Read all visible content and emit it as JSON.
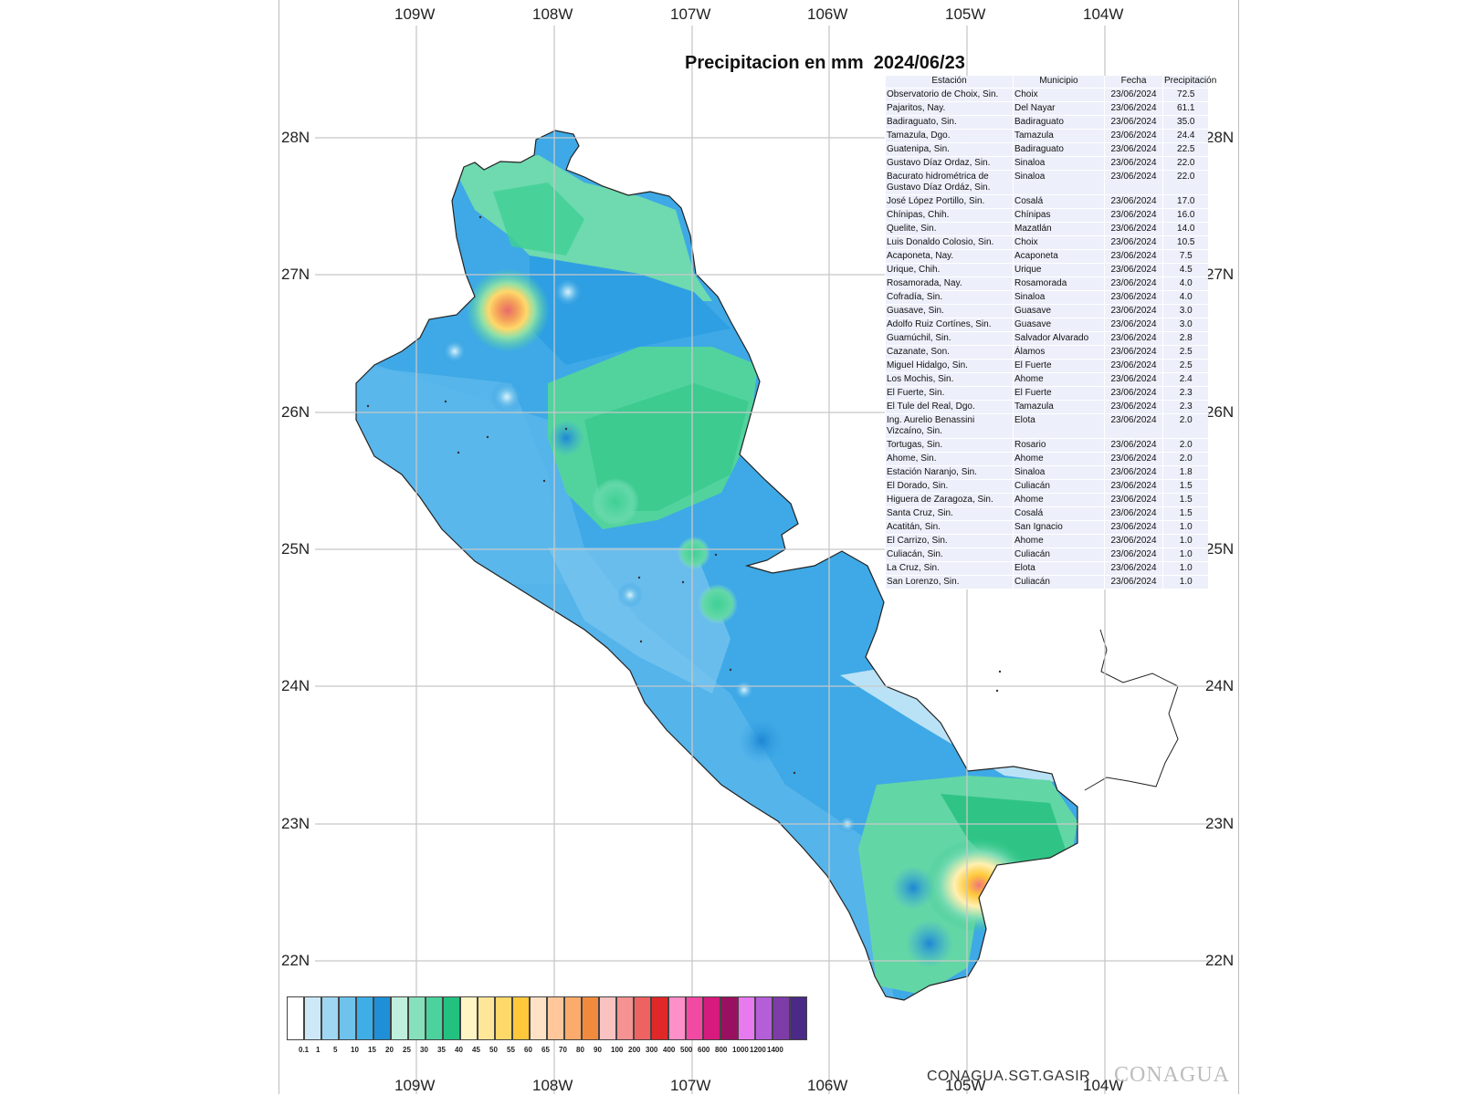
{
  "title": "Precipitacion en mm  2024/06/23",
  "lon_labels": [
    "109W",
    "108W",
    "107W",
    "106W",
    "105W",
    "104W"
  ],
  "lat_labels": [
    "28N",
    "27N",
    "26N",
    "25N",
    "24N",
    "23N",
    "22N"
  ],
  "table": {
    "headers": [
      "Estación",
      "Municipio",
      "Fecha",
      "Precipitación"
    ],
    "rows": [
      [
        "Observatorio de Choix, Sin.",
        "Choix",
        "23/06/2024",
        "72.5"
      ],
      [
        "Pajaritos, Nay.",
        "Del Nayar",
        "23/06/2024",
        "61.1"
      ],
      [
        "Badiraguato, Sin.",
        "Badiraguato",
        "23/06/2024",
        "35.0"
      ],
      [
        "Tamazula, Dgo.",
        "Tamazula",
        "23/06/2024",
        "24.4"
      ],
      [
        "Guatenipa, Sin.",
        "Badiraguato",
        "23/06/2024",
        "22.5"
      ],
      [
        "Gustavo Díaz Ordaz, Sin.",
        "Sinaloa",
        "23/06/2024",
        "22.0"
      ],
      [
        "Bacurato hidrométrica de Gustavo Díaz Ordáz, Sin.",
        "Sinaloa",
        "23/06/2024",
        "22.0"
      ],
      [
        "José López Portillo, Sin.",
        "Cosalá",
        "23/06/2024",
        "17.0"
      ],
      [
        "Chínipas, Chih.",
        "Chínipas",
        "23/06/2024",
        "16.0"
      ],
      [
        "Quelite, Sin.",
        "Mazatlán",
        "23/06/2024",
        "14.0"
      ],
      [
        "Luis Donaldo Colosio, Sin.",
        "Choix",
        "23/06/2024",
        "10.5"
      ],
      [
        "Acaponeta, Nay.",
        "Acaponeta",
        "23/06/2024",
        "7.5"
      ],
      [
        "Urique, Chih.",
        "Urique",
        "23/06/2024",
        "4.5"
      ],
      [
        "Rosamorada, Nay.",
        "Rosamorada",
        "23/06/2024",
        "4.0"
      ],
      [
        "Cofradía, Sin.",
        "Sinaloa",
        "23/06/2024",
        "4.0"
      ],
      [
        "Guasave, Sin.",
        "Guasave",
        "23/06/2024",
        "3.0"
      ],
      [
        "Adolfo Ruiz Cortínes, Sin.",
        "Guasave",
        "23/06/2024",
        "3.0"
      ],
      [
        "Guamúchil, Sin.",
        "Salvador Alvarado",
        "23/06/2024",
        "2.8"
      ],
      [
        "Cazanate, Son.",
        "Álamos",
        "23/06/2024",
        "2.5"
      ],
      [
        "Miguel Hidalgo, Sin.",
        "El Fuerte",
        "23/06/2024",
        "2.5"
      ],
      [
        "Los Mochis, Sin.",
        "Ahome",
        "23/06/2024",
        "2.4"
      ],
      [
        "El Fuerte, Sin.",
        "El Fuerte",
        "23/06/2024",
        "2.3"
      ],
      [
        "El Tule del Real, Dgo.",
        "Tamazula",
        "23/06/2024",
        "2.3"
      ],
      [
        "Ing. Aurelio Benassini Vizcaíno, Sin.",
        "Elota",
        "23/06/2024",
        "2.0"
      ],
      [
        "Tortugas, Sin.",
        "Rosario",
        "23/06/2024",
        "2.0"
      ],
      [
        "Ahome, Sin.",
        "Ahome",
        "23/06/2024",
        "2.0"
      ],
      [
        "Estación Naranjo, Sin.",
        "Sinaloa",
        "23/06/2024",
        "1.8"
      ],
      [
        "El Dorado, Sin.",
        "Culiacán",
        "23/06/2024",
        "1.5"
      ],
      [
        "Higuera de Zaragoza, Sin.",
        "Ahome",
        "23/06/2024",
        "1.5"
      ],
      [
        "Santa Cruz, Sin.",
        "Cosalá",
        "23/06/2024",
        "1.5"
      ],
      [
        "Acatitán, Sin.",
        "San Ignacio",
        "23/06/2024",
        "1.0"
      ],
      [
        "El Carrizo, Sin.",
        "Ahome",
        "23/06/2024",
        "1.0"
      ],
      [
        "Culiacán, Sin.",
        "Culiacán",
        "23/06/2024",
        "1.0"
      ],
      [
        "La Cruz, Sin.",
        "Elota",
        "23/06/2024",
        "1.0"
      ],
      [
        "San Lorenzo, Sin.",
        "Culiacán",
        "23/06/2024",
        "1.0"
      ]
    ]
  },
  "legend": {
    "ticks": [
      "0.1",
      "1",
      "5",
      "10",
      "15",
      "20",
      "25",
      "30",
      "35",
      "40",
      "45",
      "50",
      "55",
      "60",
      "65",
      "70",
      "80",
      "90",
      "100",
      "200",
      "300",
      "400",
      "500",
      "600",
      "800",
      "1000",
      "1200",
      "1400"
    ],
    "colors": [
      "#ffffff",
      "#cde9f8",
      "#9fd6f2",
      "#6ec2ec",
      "#3eaee6",
      "#1f8fd8",
      "#bff0dd",
      "#86e0bc",
      "#4cd29d",
      "#23c180",
      "#fff5c4",
      "#ffe79a",
      "#ffd86a",
      "#ffc83a",
      "#ffe1c6",
      "#ffc79a",
      "#fbac6c",
      "#f08a3c",
      "#fbc2c2",
      "#f59292",
      "#ee6262",
      "#e02828",
      "#ff8fc9",
      "#f24aa3",
      "#d71a7e",
      "#9a1060",
      "#e87af0",
      "#b45ed8",
      "#7d3ca8",
      "#4a2a86"
    ]
  },
  "credit": "CONAGUA.SGT.GASIR",
  "brand": "CONAGUA"
}
